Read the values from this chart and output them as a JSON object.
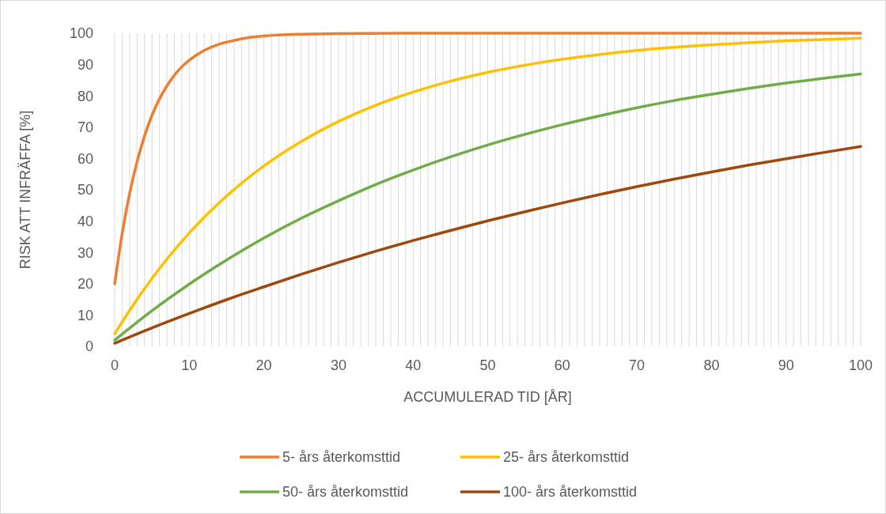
{
  "chart_data": {
    "type": "line",
    "xlabel": "ACCUMULERAD TID [ÅR]",
    "ylabel": "RISK ATT INFRÄFFA [%]",
    "xlim": [
      0,
      100
    ],
    "ylim": [
      0,
      100
    ],
    "xticks": [
      0,
      {
        "value": 1,
        "label": null
      },
      {
        "value": 2,
        "label": null
      },
      {
        "value": 3,
        "label": null
      },
      {
        "value": 4,
        "label": null
      },
      {
        "value": 5,
        "label": null
      },
      {
        "value": 6,
        "label": null
      },
      {
        "value": 7,
        "label": null
      },
      {
        "value": 8,
        "label": null
      },
      {
        "value": 9,
        "label": null
      },
      10,
      {
        "value": 11,
        "label": null
      },
      {
        "value": 12,
        "label": null
      },
      {
        "value": 13,
        "label": null
      },
      {
        "value": 14,
        "label": null
      },
      {
        "value": 15,
        "label": null
      },
      {
        "value": 16,
        "label": null
      },
      {
        "value": 17,
        "label": null
      },
      {
        "value": 18,
        "label": null
      },
      {
        "value": 19,
        "label": null
      },
      20,
      {
        "value": 21,
        "label": null
      },
      {
        "value": 22,
        "label": null
      },
      {
        "value": 23,
        "label": null
      },
      {
        "value": 24,
        "label": null
      },
      {
        "value": 25,
        "label": null
      },
      {
        "value": 26,
        "label": null
      },
      {
        "value": 27,
        "label": null
      },
      {
        "value": 28,
        "label": null
      },
      {
        "value": 29,
        "label": null
      },
      30,
      {
        "value": 31,
        "label": null
      },
      {
        "value": 32,
        "label": null
      },
      {
        "value": 33,
        "label": null
      },
      {
        "value": 34,
        "label": null
      },
      {
        "value": 35,
        "label": null
      },
      {
        "value": 36,
        "label": null
      },
      {
        "value": 37,
        "label": null
      },
      {
        "value": 38,
        "label": null
      },
      {
        "value": 39,
        "label": null
      },
      40,
      {
        "value": 41,
        "label": null
      },
      {
        "value": 42,
        "label": null
      },
      {
        "value": 43,
        "label": null
      },
      {
        "value": 44,
        "label": null
      },
      {
        "value": 45,
        "label": null
      },
      {
        "value": 46,
        "label": null
      },
      {
        "value": 47,
        "label": null
      },
      {
        "value": 48,
        "label": null
      },
      {
        "value": 49,
        "label": null
      },
      50,
      {
        "value": 51,
        "label": null
      },
      {
        "value": 52,
        "label": null
      },
      {
        "value": 53,
        "label": null
      },
      {
        "value": 54,
        "label": null
      },
      {
        "value": 55,
        "label": null
      },
      {
        "value": 56,
        "label": null
      },
      {
        "value": 57,
        "label": null
      },
      {
        "value": 58,
        "label": null
      },
      {
        "value": 59,
        "label": null
      },
      60,
      {
        "value": 61,
        "label": null
      },
      {
        "value": 62,
        "label": null
      },
      {
        "value": 63,
        "label": null
      },
      {
        "value": 64,
        "label": null
      },
      {
        "value": 65,
        "label": null
      },
      {
        "value": 66,
        "label": null
      },
      {
        "value": 67,
        "label": null
      },
      {
        "value": 68,
        "label": null
      },
      {
        "value": 69,
        "label": null
      },
      70,
      {
        "value": 71,
        "label": null
      },
      {
        "value": 72,
        "label": null
      },
      {
        "value": 73,
        "label": null
      },
      {
        "value": 74,
        "label": null
      },
      {
        "value": 75,
        "label": null
      },
      {
        "value": 76,
        "label": null
      },
      {
        "value": 77,
        "label": null
      },
      {
        "value": 78,
        "label": null
      },
      {
        "value": 79,
        "label": null
      },
      80,
      {
        "value": 81,
        "label": null
      },
      {
        "value": 82,
        "label": null
      },
      {
        "value": 83,
        "label": null
      },
      {
        "value": 84,
        "label": null
      },
      {
        "value": 85,
        "label": null
      },
      {
        "value": 86,
        "label": null
      },
      {
        "value": 87,
        "label": null
      },
      {
        "value": 88,
        "label": null
      },
      {
        "value": 89,
        "label": null
      },
      90,
      {
        "value": 91,
        "label": null
      },
      {
        "value": 92,
        "label": null
      },
      {
        "value": 93,
        "label": null
      },
      {
        "value": 94,
        "label": null
      },
      {
        "value": 95,
        "label": null
      },
      {
        "value": 96,
        "label": null
      },
      {
        "value": 97,
        "label": null
      },
      {
        "value": 98,
        "label": null
      },
      {
        "value": 99,
        "label": null
      },
      100
    ],
    "yticks": [
      0,
      10,
      20,
      30,
      40,
      50,
      60,
      70,
      80,
      90,
      100
    ],
    "grid": "x",
    "legend": "bottom",
    "marker": "none",
    "line_style": "solid",
    "series": [
      {
        "name": "5- års återkomsttid",
        "color": "#ed7d31",
        "x": [
          0,
          1,
          2,
          3,
          4,
          5,
          6,
          7,
          8,
          9,
          10,
          12,
          14,
          16,
          18,
          20,
          25,
          30,
          40,
          50,
          60,
          70,
          80,
          90,
          100
        ],
        "values": [
          20,
          36,
          48.8,
          59,
          67.2,
          73.8,
          79,
          83.2,
          86.6,
          89.3,
          91.4,
          94.5,
          96.5,
          97.7,
          98.6,
          99.1,
          99.7,
          99.9,
          100,
          100,
          100,
          100,
          100,
          100,
          100
        ]
      },
      {
        "name": "25- års återkomsttid",
        "color": "#ffc000",
        "x": [
          0,
          2,
          5,
          10,
          15,
          20,
          25,
          30,
          35,
          40,
          45,
          50,
          55,
          60,
          65,
          70,
          75,
          80,
          85,
          90,
          95,
          100
        ],
        "values": [
          4,
          11.5,
          21.7,
          36.2,
          48,
          57.6,
          65.4,
          71.8,
          77,
          81.2,
          84.7,
          87.5,
          89.8,
          91.7,
          93.2,
          94.5,
          95.5,
          96.3,
          97,
          97.6,
          98,
          98.4
        ]
      },
      {
        "name": "50- års återkomsttid",
        "color": "#70ad47",
        "x": [
          0,
          5,
          10,
          15,
          20,
          25,
          30,
          35,
          40,
          45,
          50,
          55,
          60,
          65,
          70,
          75,
          80,
          85,
          90,
          95,
          100
        ],
        "values": [
          2,
          11.4,
          19.9,
          27.6,
          34.6,
          40.9,
          46.5,
          51.7,
          56.3,
          60.5,
          64.3,
          67.7,
          70.8,
          73.6,
          76.2,
          78.5,
          80.5,
          82.4,
          84.1,
          85.6,
          87
        ]
      },
      {
        "name": "100- års återkomsttid",
        "color": "#9e480e",
        "x": [
          0,
          5,
          10,
          15,
          20,
          25,
          30,
          35,
          40,
          45,
          50,
          55,
          60,
          65,
          70,
          75,
          80,
          85,
          90,
          95,
          100
        ],
        "values": [
          1,
          5.9,
          10.5,
          14.9,
          19,
          23,
          26.8,
          30.4,
          33.8,
          37,
          40.1,
          43,
          45.8,
          48.5,
          51,
          53.4,
          55.7,
          57.9,
          59.9,
          61.9,
          63.8
        ]
      }
    ]
  }
}
